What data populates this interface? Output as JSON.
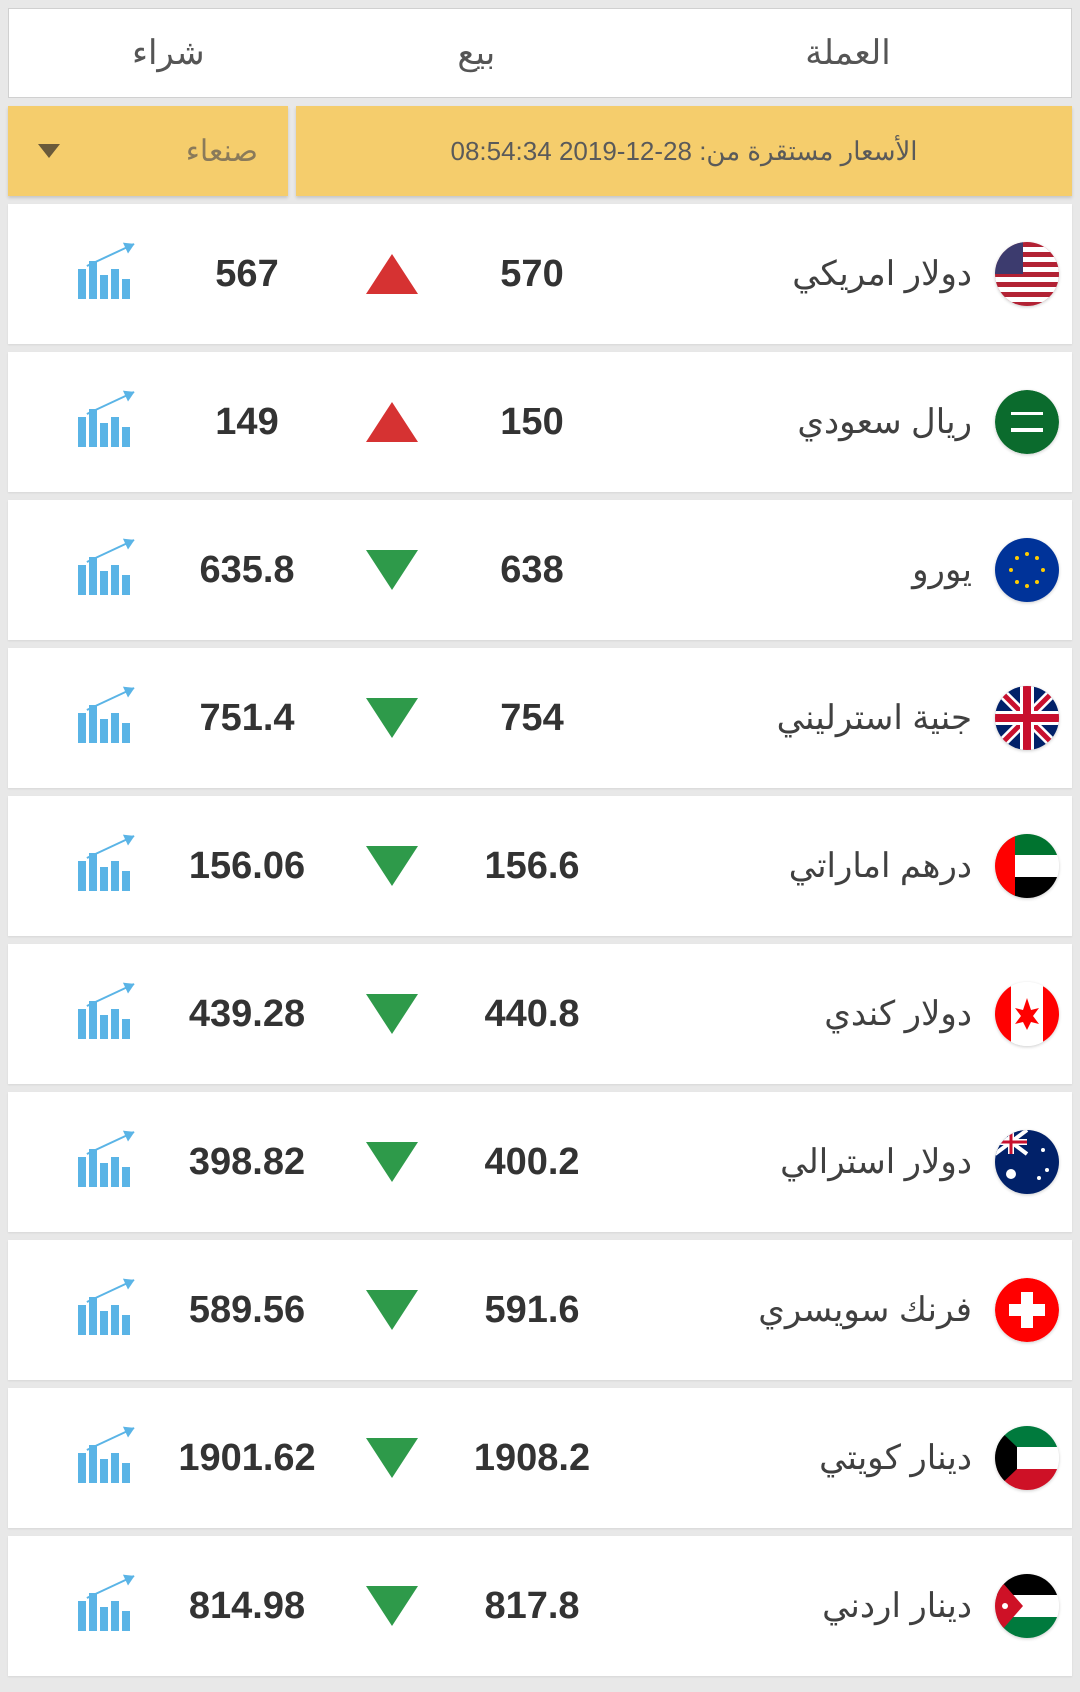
{
  "headers": {
    "currency": "العملة",
    "sell": "بيع",
    "buy": "شراء"
  },
  "status": {
    "text": "الأسعار مستقرة من: 28-12-2019 08:54:34",
    "city": "صنعاء"
  },
  "colors": {
    "up": "#d63232",
    "down": "#2e9a4a",
    "bannerBg": "#f5cd6c",
    "rowBg": "#ffffff",
    "pageBg": "#e8e8e8"
  },
  "rows": [
    {
      "name": "دولار امريكي",
      "sell": "570",
      "buy": "567",
      "trend": "up",
      "flag": "us"
    },
    {
      "name": "ريال سعودي",
      "sell": "150",
      "buy": "149",
      "trend": "up",
      "flag": "sa"
    },
    {
      "name": "يورو",
      "sell": "638",
      "buy": "635.8",
      "trend": "down",
      "flag": "eu"
    },
    {
      "name": "جنية استرليني",
      "sell": "754",
      "buy": "751.4",
      "trend": "down",
      "flag": "gb"
    },
    {
      "name": "درهم اماراتي",
      "sell": "156.6",
      "buy": "156.06",
      "trend": "down",
      "flag": "ae"
    },
    {
      "name": "دولار كندي",
      "sell": "440.8",
      "buy": "439.28",
      "trend": "down",
      "flag": "ca"
    },
    {
      "name": "دولار استرالي",
      "sell": "400.2",
      "buy": "398.82",
      "trend": "down",
      "flag": "au"
    },
    {
      "name": "فرنك سويسري",
      "sell": "591.6",
      "buy": "589.56",
      "trend": "down",
      "flag": "ch"
    },
    {
      "name": "دينار كويتي",
      "sell": "1908.2",
      "buy": "1901.62",
      "trend": "down",
      "flag": "kw"
    },
    {
      "name": "دينار اردني",
      "sell": "817.8",
      "buy": "814.98",
      "trend": "down",
      "flag": "jo"
    }
  ],
  "flags": {
    "us": "<svg viewBox='0 0 64 64'><rect width='64' height='64' fill='#b22234'/><rect y='5' width='64' height='5' fill='#fff'/><rect y='15' width='64' height='5' fill='#fff'/><rect y='25' width='64' height='5' fill='#fff'/><rect y='35' width='64' height='5' fill='#fff'/><rect y='45' width='64' height='5' fill='#fff'/><rect y='55' width='64' height='5' fill='#fff'/><rect width='28' height='32' fill='#3c3b6e'/></svg>",
    "sa": "<svg viewBox='0 0 64 64'><circle cx='32' cy='32' r='32' fill='#0b6b2d'/><rect x='16' y='38' width='32' height='4' fill='#fff'/><rect x='16' y='22' width='32' height='3' fill='#fff'/></svg>",
    "eu": "<svg viewBox='0 0 64 64'><rect width='64' height='64' fill='#003399'/><circle cx='32' cy='16' r='2' fill='#ffcc00'/><circle cx='42' cy='20' r='2' fill='#ffcc00'/><circle cx='48' cy='32' r='2' fill='#ffcc00'/><circle cx='42' cy='44' r='2' fill='#ffcc00'/><circle cx='32' cy='48' r='2' fill='#ffcc00'/><circle cx='22' cy='44' r='2' fill='#ffcc00'/><circle cx='16' cy='32' r='2' fill='#ffcc00'/><circle cx='22' cy='20' r='2' fill='#ffcc00'/></svg>",
    "gb": "<svg viewBox='0 0 64 64'><rect width='64' height='64' fill='#012169'/><path d='M0 0L64 64M64 0L0 64' stroke='#fff' stroke-width='10'/><path d='M0 0L64 64M64 0L0 64' stroke='#c8102e' stroke-width='5'/><path d='M32 0V64M0 32H64' stroke='#fff' stroke-width='14'/><path d='M32 0V64M0 32H64' stroke='#c8102e' stroke-width='8'/></svg>",
    "ae": "<svg viewBox='0 0 64 64'><rect width='64' height='21' fill='#00732f'/><rect y='21' width='64' height='22' fill='#fff'/><rect y='43' width='64' height='21' fill='#000'/><rect width='20' height='64' fill='#ff0000'/></svg>",
    "ca": "<svg viewBox='0 0 64 64'><rect width='64' height='64' fill='#fff'/><rect width='16' height='64' fill='#ff0000'/><rect x='48' width='16' height='64' fill='#ff0000'/><path d='M32 16 L36 28 L44 26 L38 34 L44 42 L36 40 L32 48 L28 40 L20 42 L26 34 L20 26 L28 28 Z' fill='#ff0000'/></svg>",
    "au": "<svg viewBox='0 0 64 64'><rect width='64' height='64' fill='#012169'/><rect width='32' height='24' fill='#012169'/><path d='M0 0L32 24M32 0L0 24' stroke='#fff' stroke-width='4'/><path d='M16 0V24M0 12H32' stroke='#fff' stroke-width='6'/><path d='M16 0V24M0 12H32' stroke='#c8102e' stroke-width='3'/><circle cx='16' cy='44' r='5' fill='#fff'/><circle cx='48' cy='20' r='2' fill='#fff'/><circle cx='52' cy='40' r='2' fill='#fff'/><circle cx='44' cy='48' r='2' fill='#fff'/></svg>",
    "ch": "<svg viewBox='0 0 64 64'><circle cx='32' cy='32' r='32' fill='#ff0000'/><rect x='26' y='14' width='12' height='36' fill='#fff'/><rect x='14' y='26' width='36' height='12' fill='#fff'/></svg>",
    "kw": "<svg viewBox='0 0 64 64'><rect width='64' height='21' fill='#007a3d'/><rect y='21' width='64' height='22' fill='#fff'/><rect y='43' width='64' height='21' fill='#ce1126'/><path d='M0 0 L22 21 L22 43 L0 64 Z' fill='#000'/></svg>",
    "jo": "<svg viewBox='0 0 64 64'><rect width='64' height='21' fill='#000'/><rect y='21' width='64' height='22' fill='#fff'/><rect y='43' width='64' height='21' fill='#007a3d'/><path d='M0 0 L28 32 L0 64 Z' fill='#ce1126'/><circle cx='10' cy='32' r='3' fill='#fff'/></svg>"
  }
}
